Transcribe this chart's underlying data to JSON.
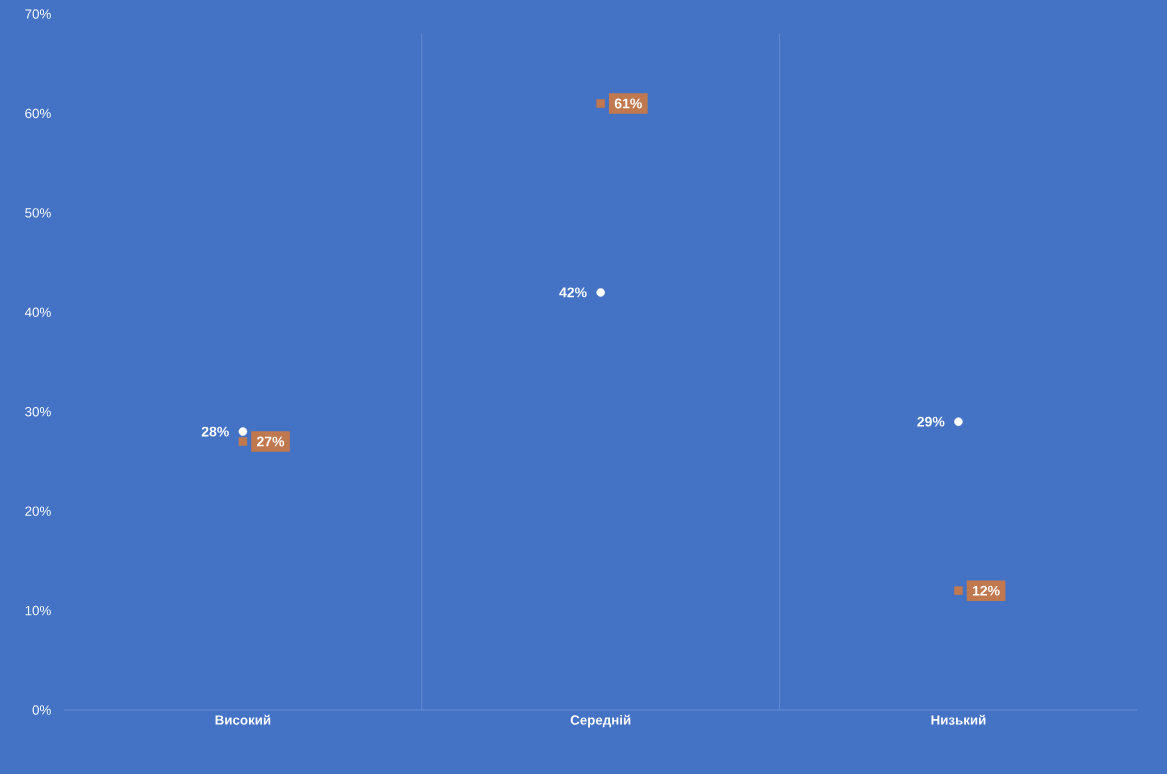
{
  "chart_data": {
    "type": "scatter",
    "categories": [
      "Високий",
      "Середній",
      "Низький"
    ],
    "series": [
      {
        "color": "#ffffff",
        "marker": "circle",
        "values": [
          28,
          42,
          29
        ],
        "value_labels": [
          "28%",
          "42%",
          "29%"
        ]
      },
      {
        "color": "#c0784f",
        "marker": "square",
        "values": [
          27,
          61,
          12
        ],
        "value_labels": [
          "27%",
          "61%",
          "12%"
        ]
      }
    ],
    "ylim": [
      0,
      70
    ],
    "yticks": [
      {
        "value": 0,
        "label": "0%"
      },
      {
        "value": 10,
        "label": "10%"
      },
      {
        "value": 20,
        "label": "20%"
      },
      {
        "value": 30,
        "label": "30%"
      },
      {
        "value": 40,
        "label": "40%"
      },
      {
        "value": 50,
        "label": "50%"
      },
      {
        "value": 60,
        "label": "60%"
      },
      {
        "value": 70,
        "label": "70%"
      }
    ]
  }
}
